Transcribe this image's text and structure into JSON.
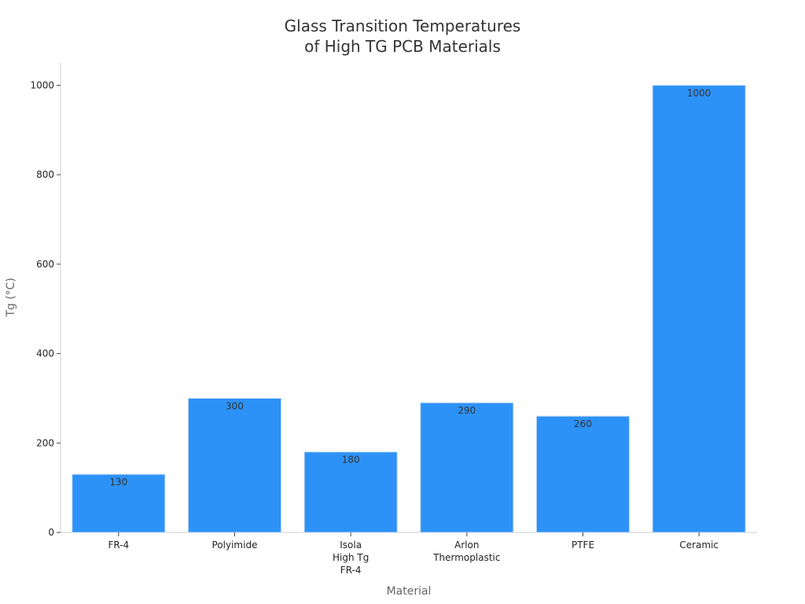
{
  "chart_data": {
    "type": "bar",
    "title_lines": [
      "Glass Transition Temperatures",
      "of High TG PCB Materials"
    ],
    "xlabel": "Material",
    "ylabel": "Tg (°C)",
    "categories": [
      [
        "FR-4"
      ],
      [
        "Polyimide"
      ],
      [
        "Isola",
        "High Tg",
        "FR-4"
      ],
      [
        "Arlon",
        "Thermoplastic"
      ],
      [
        "PTFE"
      ],
      [
        "Ceramic"
      ]
    ],
    "values": [
      130,
      300,
      180,
      290,
      260,
      1000
    ],
    "data_labels": [
      "130",
      "300",
      "180",
      "290",
      "260",
      "1000"
    ],
    "ylim": [
      0,
      1050
    ],
    "yticks": [
      0,
      200,
      400,
      600,
      800,
      1000
    ],
    "grid": false,
    "bar_color": "#2d92f8",
    "bar_edge_color": "#c9dcf0"
  }
}
